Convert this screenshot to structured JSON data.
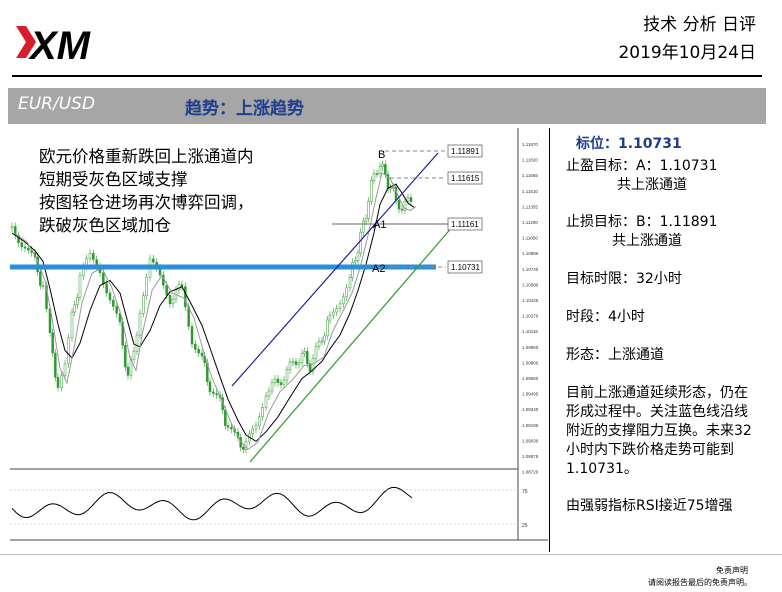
{
  "header": {
    "logo_text": "XM",
    "report_title": "技术 分析 日评",
    "date": "2019年10月24日"
  },
  "banner": {
    "pair": "EUR/USD",
    "trend": "趋势：上涨趋势"
  },
  "overlay_text": [
    "欧元价格重新跌回上涨通道内",
    "短期受灰色区域支撑",
    "按图轻仓进场再次博弈回调，",
    "跌破灰色区域加仓"
  ],
  "chart": {
    "price_labels": [
      "1.11891",
      "1.11615",
      "1.11161",
      "1.10731"
    ],
    "point_labels": [
      "B",
      "A1",
      "A2"
    ],
    "axis_ticks": [
      "1.11970",
      "1.11820",
      "1.11665",
      "1.11510",
      "1.11355",
      "1.11200",
      "1.11050",
      "1.10895",
      "1.10740",
      "1.10580",
      "1.10425",
      "1.10270",
      "1.10115",
      "1.09960",
      "1.09805",
      "1.09650",
      "1.09495",
      "1.09340",
      "1.09185",
      "1.09030",
      "1.08875",
      "1.08720"
    ],
    "rsi_ticks": [
      "75",
      "25"
    ],
    "colors": {
      "support_line": "#2a8fd6",
      "upper_channel": "#1c1f9e",
      "lower_channel": "#2e9b2e",
      "candle": "#2e9b2e"
    }
  },
  "side": {
    "level_label": "标位：1.10731",
    "tp_line1": "止盈目标：A：1.10731",
    "tp_line2": "共上涨通道",
    "sl_line1": "止损目标：B：1.11891",
    "sl_line2": "共上涨通道",
    "time_target": "目标时限：32小时",
    "timeframe": "时段：4小时",
    "pattern": "形态：上涨通道",
    "analysis": [
      "目前上涨通道延续形态，仍在",
      "形成过程中。关注蓝色线沿线",
      "附近的支撑阻力互换。未来32",
      "小时内下跌价格走势可能到",
      "1.10731。"
    ],
    "rsi_note": "由强弱指标RSI接近75增强"
  },
  "disclaimer": {
    "title": "免责声明",
    "body": "请阅读报告最后的免责声明。"
  }
}
